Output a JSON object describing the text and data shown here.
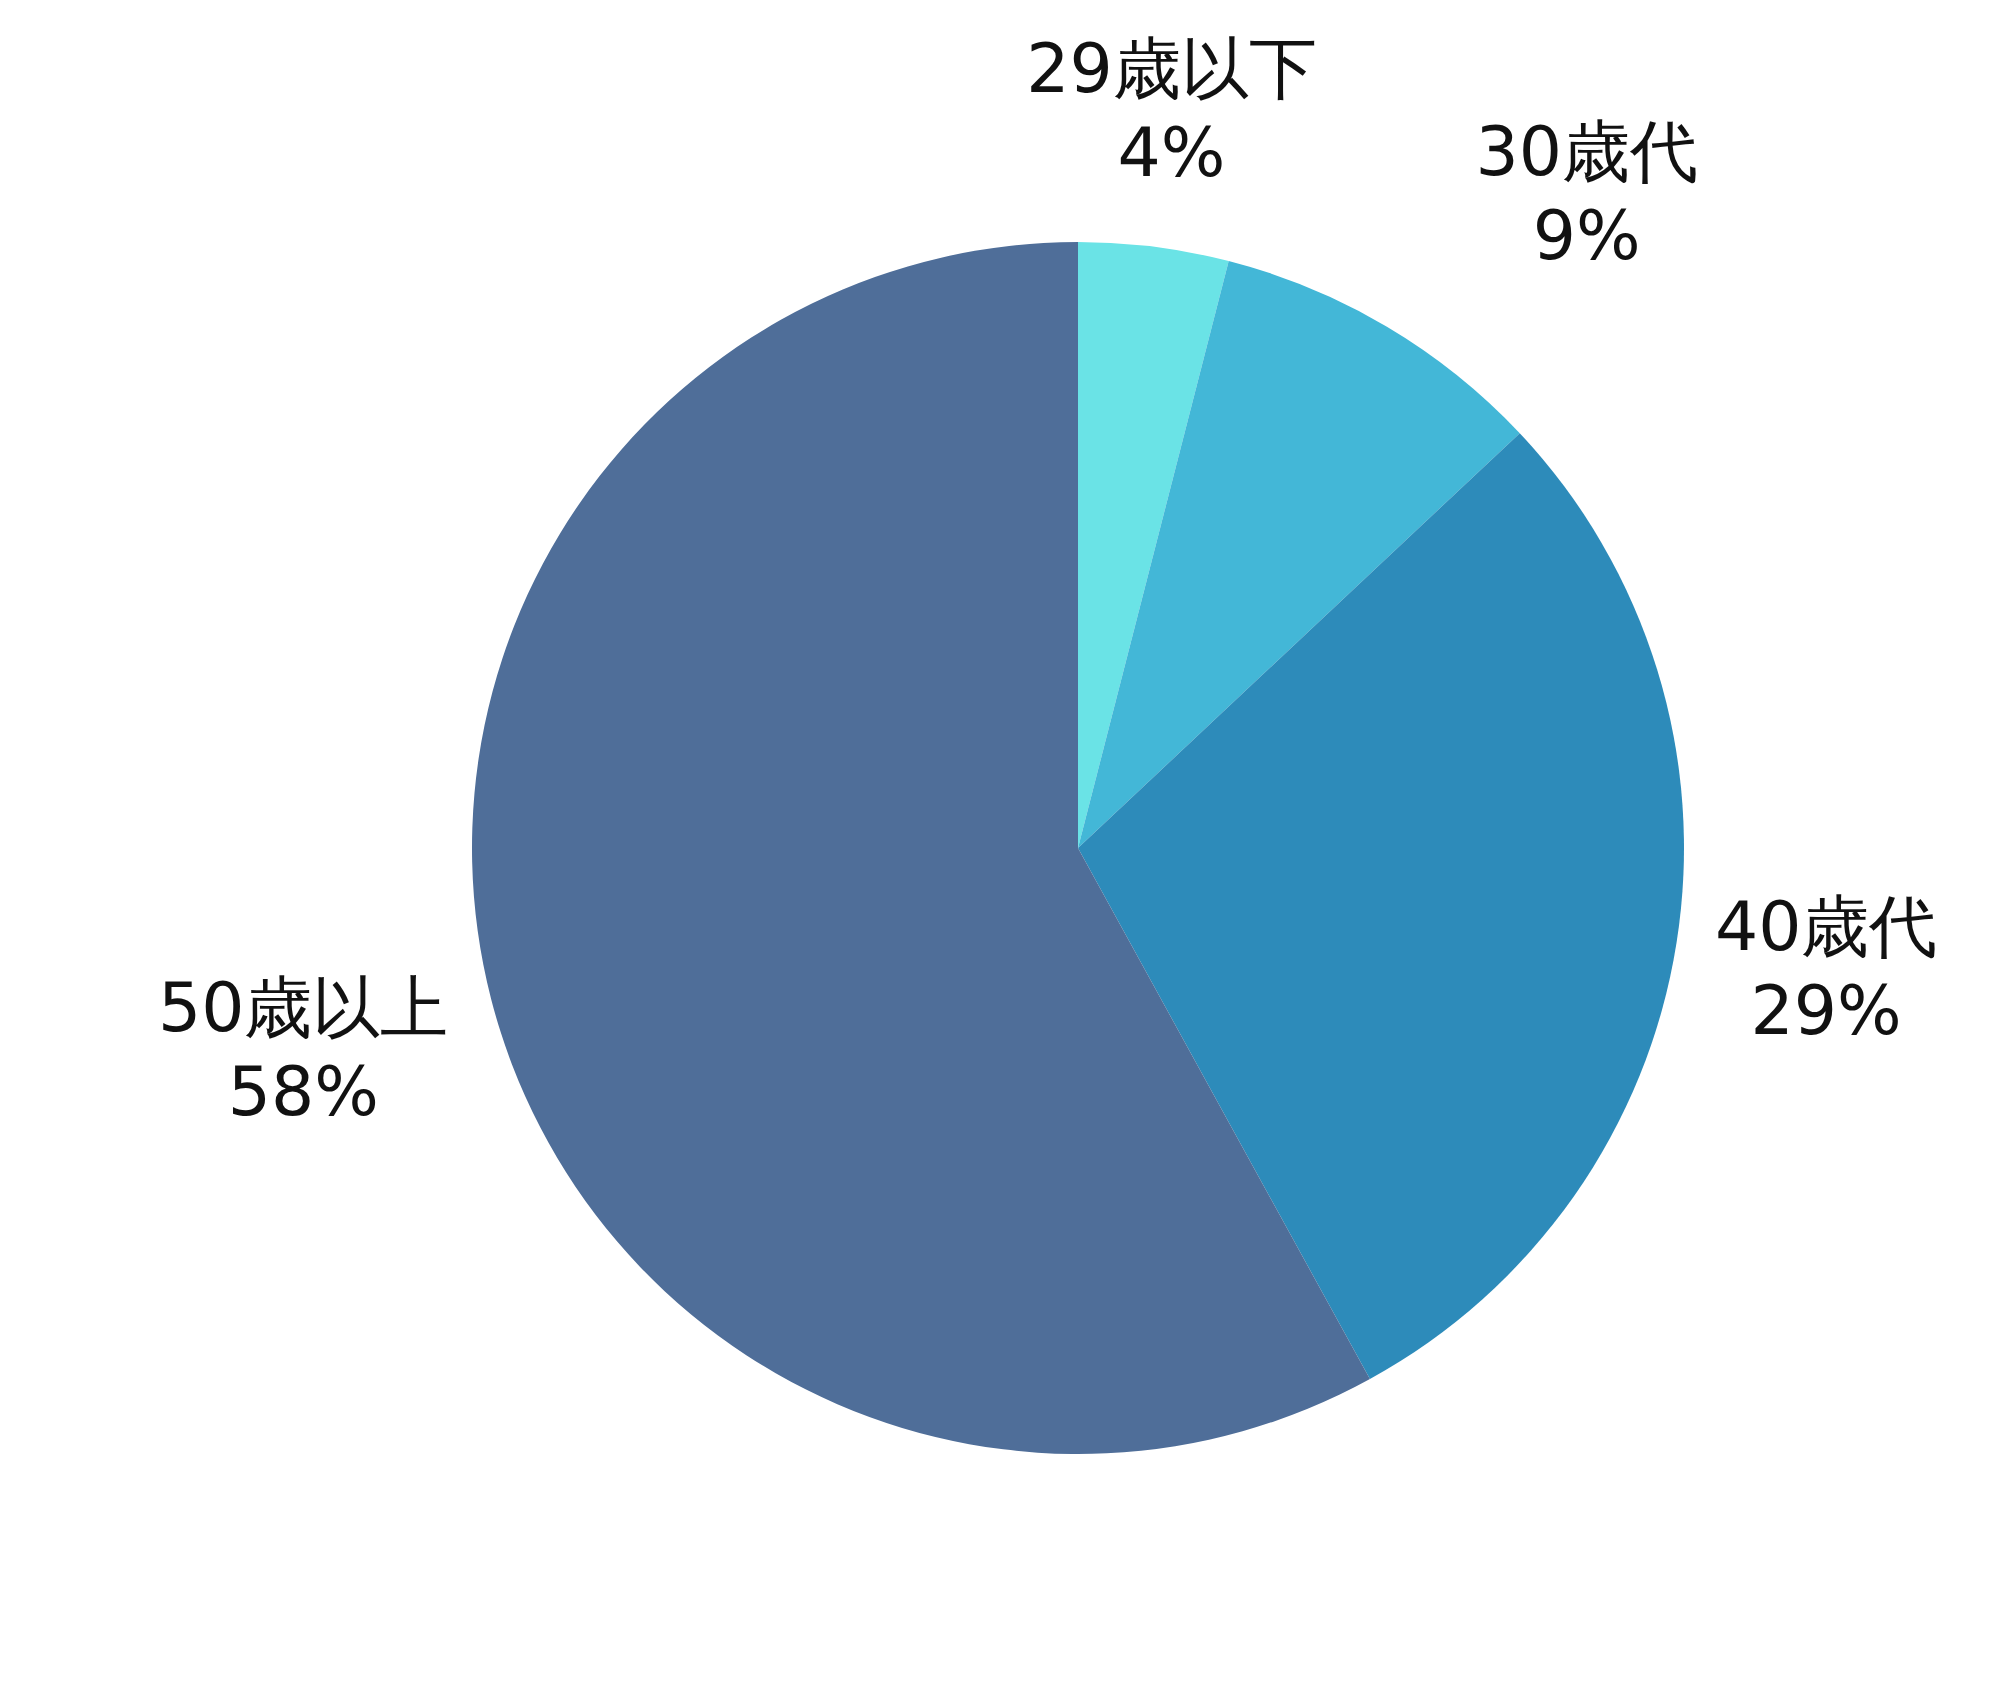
{
  "chart_data": {
    "type": "pie",
    "categories": [
      "29歳以下",
      "30歳代",
      "40歳代",
      "50歳以上"
    ],
    "values": [
      4,
      9,
      29,
      58
    ],
    "colors": [
      "#6ae3e6",
      "#43b7d7",
      "#2d8bba",
      "#4f6e99"
    ],
    "value_labels": [
      "4%",
      "9%",
      "29%",
      "58%"
    ],
    "legend": false
  }
}
